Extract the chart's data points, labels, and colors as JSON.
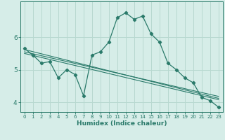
{
  "xlabel": "Humidex (Indice chaleur)",
  "bg_color": "#d6ede8",
  "grid_color": "#b8d8d0",
  "line_color": "#2a7a6a",
  "xlim": [
    -0.5,
    23.5
  ],
  "ylim": [
    3.7,
    7.1
  ],
  "yticks": [
    4,
    5,
    6
  ],
  "xticks": [
    0,
    1,
    2,
    3,
    4,
    5,
    6,
    7,
    8,
    9,
    10,
    11,
    12,
    13,
    14,
    15,
    16,
    17,
    18,
    19,
    20,
    21,
    22,
    23
  ],
  "series": [
    {
      "x": [
        0,
        1,
        2,
        3,
        4,
        5,
        6,
        7,
        8,
        9,
        10,
        11,
        12,
        13,
        14,
        15,
        16,
        17,
        18,
        19,
        20,
        21,
        22,
        23
      ],
      "y": [
        5.65,
        5.45,
        5.2,
        5.25,
        4.75,
        5.0,
        4.85,
        4.2,
        5.45,
        5.55,
        5.85,
        6.6,
        6.75,
        6.55,
        6.65,
        6.1,
        5.85,
        5.2,
        5.0,
        4.75,
        4.6,
        4.15,
        4.05,
        3.85
      ]
    },
    {
      "x": [
        0,
        23
      ],
      "y": [
        5.62,
        4.12
      ]
    },
    {
      "x": [
        0,
        23
      ],
      "y": [
        5.55,
        4.18
      ]
    },
    {
      "x": [
        0,
        23
      ],
      "y": [
        5.5,
        4.08
      ]
    }
  ]
}
